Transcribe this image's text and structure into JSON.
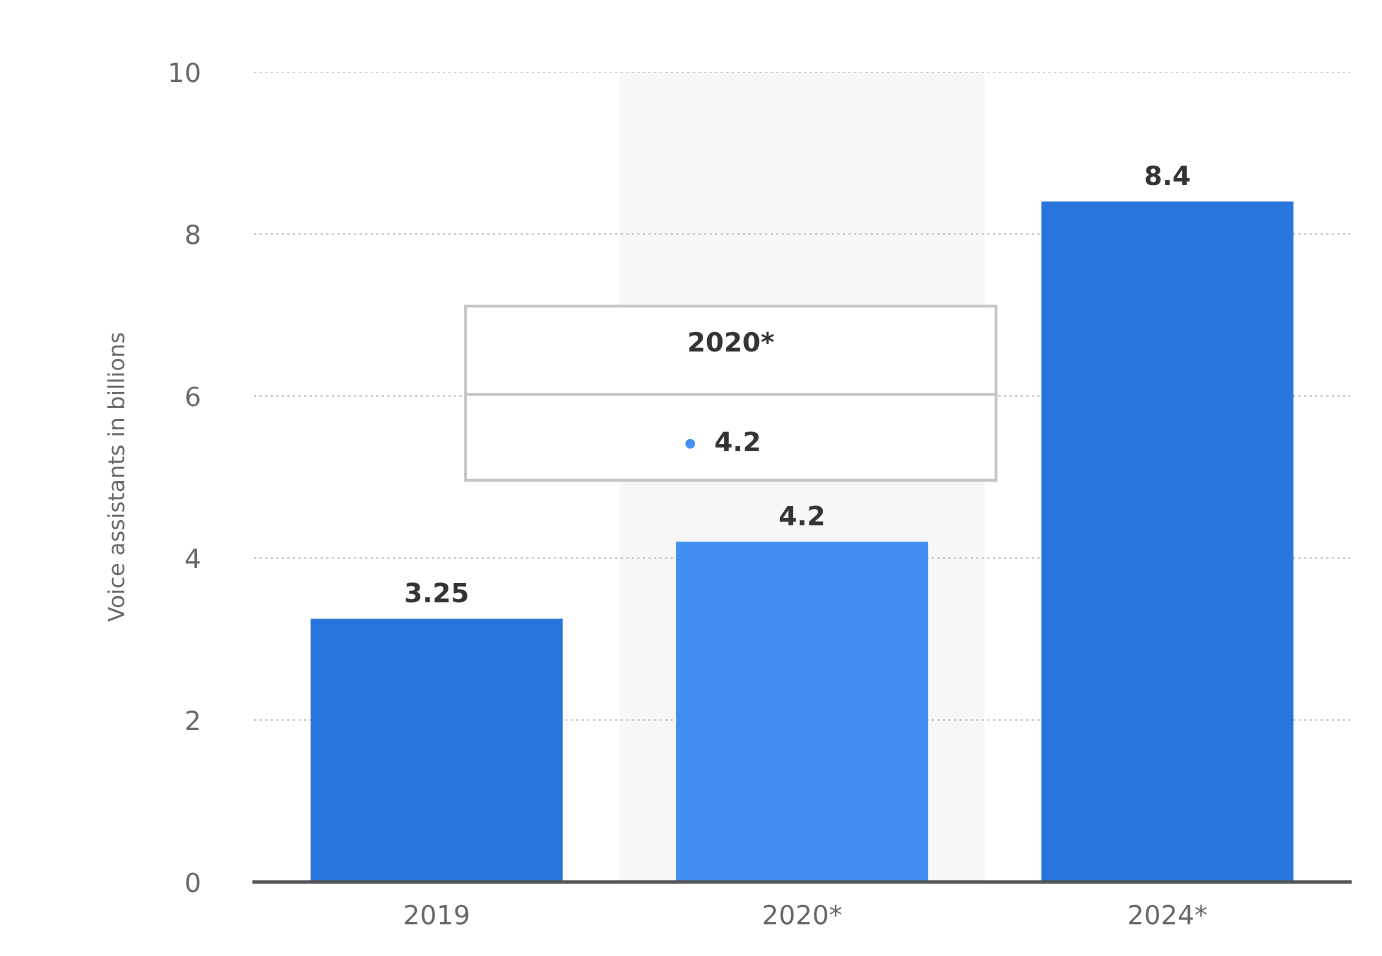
{
  "chart_data": {
    "type": "bar",
    "ylabel": "Voice assistants in billions",
    "categories": [
      "2019",
      "2020*",
      "2024*"
    ],
    "values": [
      3.25,
      4.2,
      8.4
    ],
    "colors": [
      "#2876dd",
      "#428ef2",
      "#2876dd"
    ],
    "ylim": [
      0,
      10
    ],
    "yticks": [
      0,
      2,
      4,
      6,
      8,
      10
    ],
    "grid": "y",
    "data_labels": true,
    "bands": [
      {
        "axis": "x",
        "from": "2020*",
        "to": "2020*",
        "color": "#f7f7f7"
      }
    ],
    "annotations": [
      "2020*",
      "4.2"
    ]
  }
}
